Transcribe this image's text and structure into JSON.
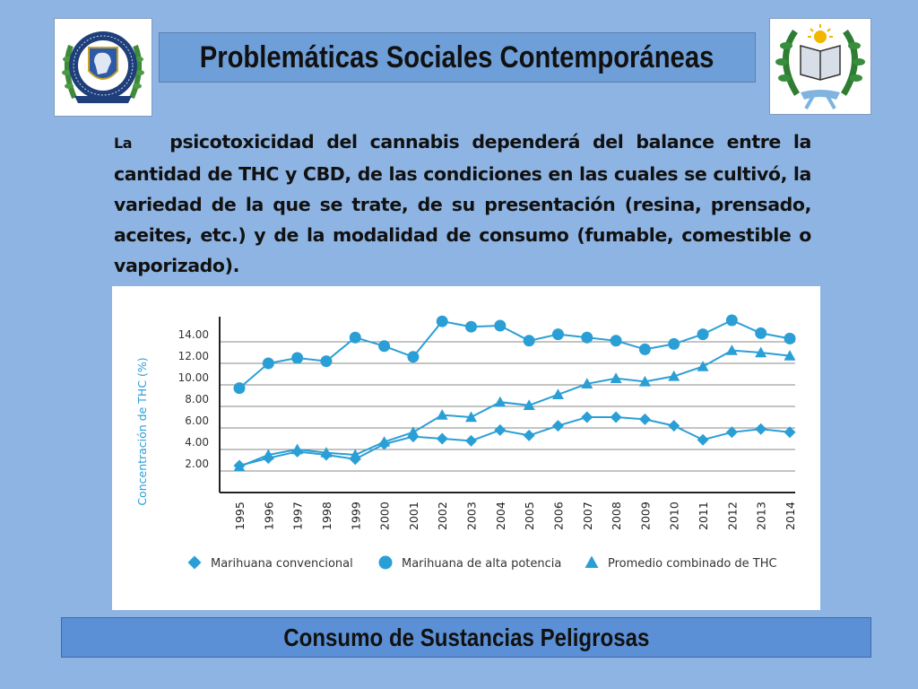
{
  "header": {
    "title": "Problemáticas Sociales Contemporáneas"
  },
  "logos": {
    "left": {
      "icon": "police-institute-seal-icon",
      "ring_text": "INSTITUTO UNIVERSITARIO",
      "ribbon_text": "POLICIA FEDERAL ARGENTINA"
    },
    "right": {
      "icon": "book-and-sun-laurel-emblem-icon"
    }
  },
  "body": {
    "paragraph_first_letter": "La",
    "paragraph": "psicotoxicidad del cannabis dependerá del balance entre la cantidad de THC y CBD, de las condiciones en las cuales se cultivó, la variedad de la que se trate, de su presentación (resina, prensado, aceites, etc.) y de la modalidad de consumo (fumable, comestible o vaporizado)."
  },
  "chart_data": {
    "type": "line",
    "title": "",
    "xlabel": "",
    "ylabel": "Concentración de THC (%)",
    "ylim": [
      0,
      16
    ],
    "grid": true,
    "legend_position": "bottom",
    "color": "#2a9fd6",
    "yticks": [
      "2.00",
      "4.00",
      "6.00",
      "8.00",
      "10.00",
      "12.00",
      "14.00"
    ],
    "x": [
      "1995",
      "1996",
      "1997",
      "1998",
      "1999",
      "2000",
      "2001",
      "2002",
      "2003",
      "2004",
      "2005",
      "2006",
      "2007",
      "2008",
      "2009",
      "2010",
      "2011",
      "2012",
      "2013",
      "2014"
    ],
    "series": [
      {
        "name": "Marihuana convencional",
        "marker": "diamond",
        "values": [
          2.5,
          3.2,
          3.8,
          3.5,
          3.1,
          4.5,
          5.2,
          5.0,
          4.8,
          5.8,
          5.3,
          6.2,
          7.0,
          7.0,
          6.8,
          6.2,
          4.9,
          5.6,
          5.9,
          5.6
        ]
      },
      {
        "name": "Marihuana de alta potencia",
        "marker": "circle",
        "values": [
          9.7,
          12.0,
          12.5,
          12.2,
          14.4,
          13.6,
          12.6,
          15.9,
          15.4,
          15.5,
          14.1,
          14.7,
          14.4,
          14.1,
          13.3,
          13.8,
          14.7,
          16.0,
          14.8,
          14.3
        ]
      },
      {
        "name": "Promedio combinado de THC",
        "marker": "triangle",
        "values": [
          2.4,
          3.5,
          4.0,
          3.7,
          3.5,
          4.7,
          5.6,
          7.2,
          7.0,
          8.4,
          8.1,
          9.1,
          10.1,
          10.6,
          10.3,
          10.8,
          11.7,
          13.2,
          13.0,
          12.7
        ]
      }
    ]
  },
  "footer": {
    "title": "Consumo de Sustancias Peligrosas"
  }
}
